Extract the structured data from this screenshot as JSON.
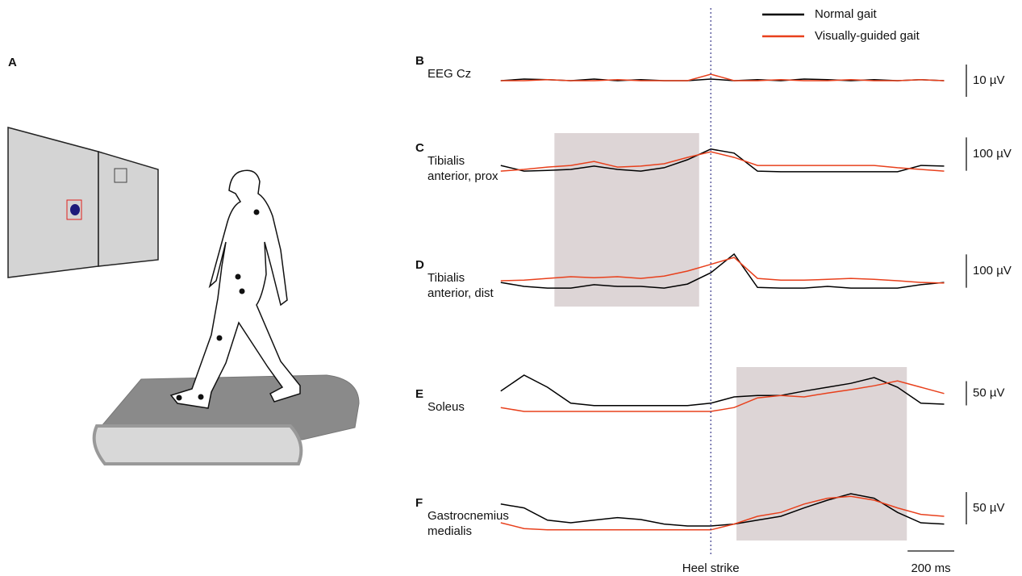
{
  "panel_a": {
    "label": "A"
  },
  "legend": [
    {
      "name": "Normal gait",
      "color": "#000000"
    },
    {
      "name": "Visually-guided gait",
      "color": "#e8401c"
    }
  ],
  "time_axis": {
    "heel_strike": {
      "value": 0,
      "label": "Heel strike"
    },
    "scale_bar": {
      "value": 200,
      "label": "200 ms"
    }
  },
  "chart_data": [
    {
      "type": "line",
      "panel": "B",
      "title_lines": [
        "EEG Cz"
      ],
      "x": [
        -900,
        -800,
        -700,
        -600,
        -500,
        -400,
        -300,
        -200,
        -100,
        0,
        100,
        200,
        300,
        400,
        500,
        600,
        700,
        800,
        900,
        1000
      ],
      "xlim": [
        -920,
        1050
      ],
      "ylim": [
        -10,
        10
      ],
      "scale_bar": {
        "value": 10,
        "label": "10 µV"
      },
      "series": [
        {
          "color": "#000000",
          "values": [
            0,
            0.5,
            0.3,
            0,
            0.5,
            0,
            0.3,
            0,
            0,
            0.5,
            0,
            0.3,
            0,
            0.5,
            0.3,
            0,
            0.3,
            0,
            0.3,
            0
          ]
        },
        {
          "color": "#e8401c",
          "values": [
            0,
            0,
            0.3,
            0,
            0,
            0.3,
            0,
            0,
            0,
            2,
            0,
            0,
            0.3,
            0,
            0,
            0.3,
            0,
            0,
            0.3,
            0
          ]
        }
      ]
    },
    {
      "type": "line",
      "panel": "C",
      "title_lines": [
        "Tibialis",
        "anterior, prox"
      ],
      "x": [
        -900,
        -800,
        -700,
        -600,
        -500,
        -400,
        -300,
        -200,
        -100,
        0,
        100,
        200,
        300,
        400,
        500,
        600,
        700,
        800,
        900,
        1000
      ],
      "xlim": [
        -920,
        1050
      ],
      "ylim": [
        0,
        150
      ],
      "highlight_x": [
        -670,
        -50
      ],
      "scale_bar": {
        "value": 100,
        "label": "100 µV"
      },
      "series": [
        {
          "color": "#000000",
          "values": [
            41,
            24,
            26,
            29,
            39,
            29,
            24,
            34,
            58,
            90,
            78,
            24,
            22,
            22,
            22,
            22,
            22,
            22,
            41,
            39
          ]
        },
        {
          "color": "#e8401c",
          "values": [
            24,
            29,
            36,
            41,
            53,
            36,
            39,
            46,
            65,
            82,
            65,
            41,
            41,
            41,
            41,
            41,
            41,
            34,
            29,
            24
          ]
        }
      ]
    },
    {
      "type": "line",
      "panel": "D",
      "title_lines": [
        "Tibialis",
        "anterior, dist"
      ],
      "x": [
        -900,
        -800,
        -700,
        -600,
        -500,
        -400,
        -300,
        -200,
        -100,
        0,
        100,
        200,
        300,
        400,
        500,
        600,
        700,
        800,
        900,
        1000
      ],
      "xlim": [
        -920,
        1050
      ],
      "ylim": [
        0,
        150
      ],
      "highlight_x": [
        -670,
        -50
      ],
      "scale_bar": {
        "value": 100,
        "label": "100 µV"
      },
      "series": [
        {
          "color": "#000000",
          "values": [
            41,
            29,
            24,
            24,
            34,
            29,
            29,
            24,
            36,
            70,
            126,
            26,
            24,
            24,
            29,
            24,
            24,
            24,
            34,
            41
          ]
        },
        {
          "color": "#e8401c",
          "values": [
            46,
            48,
            53,
            58,
            55,
            58,
            53,
            60,
            75,
            95,
            116,
            53,
            48,
            48,
            50,
            53,
            50,
            46,
            41,
            39
          ]
        }
      ]
    },
    {
      "type": "line",
      "panel": "E",
      "title_lines": [
        "Soleus"
      ],
      "x": [
        -900,
        -800,
        -700,
        -600,
        -500,
        -400,
        -300,
        -200,
        -100,
        0,
        100,
        200,
        300,
        400,
        500,
        600,
        700,
        800,
        900,
        1000
      ],
      "xlim": [
        -920,
        1050
      ],
      "ylim": [
        0,
        75
      ],
      "highlight_x": [
        110,
        840
      ],
      "scale_bar": {
        "value": 50,
        "label": "50 µV"
      },
      "series": [
        {
          "color": "#000000",
          "values": [
            42,
            75,
            50,
            17,
            12,
            12,
            12,
            12,
            12,
            17,
            30,
            33,
            33,
            42,
            50,
            58,
            70,
            50,
            17,
            15
          ]
        },
        {
          "color": "#e8401c",
          "values": [
            8,
            0,
            0,
            0,
            0,
            0,
            0,
            0,
            0,
            0,
            8,
            28,
            33,
            30,
            38,
            45,
            53,
            63,
            50,
            37
          ]
        }
      ]
    },
    {
      "type": "line",
      "panel": "F",
      "title_lines": [
        "Gastrocnemius",
        "medialis"
      ],
      "x": [
        -900,
        -800,
        -700,
        -600,
        -500,
        -400,
        -300,
        -200,
        -100,
        0,
        100,
        200,
        300,
        400,
        500,
        600,
        700,
        800,
        900,
        1000
      ],
      "xlim": [
        -920,
        1050
      ],
      "ylim": [
        0,
        75
      ],
      "highlight_x": [
        110,
        840
      ],
      "scale_bar": {
        "value": 50,
        "label": "50 µV"
      },
      "series": [
        {
          "color": "#000000",
          "values": [
            44,
            38,
            19,
            15,
            19,
            23,
            20,
            13,
            10,
            10,
            13,
            19,
            25,
            38,
            50,
            60,
            53,
            31,
            15,
            13
          ]
        },
        {
          "color": "#e8401c",
          "values": [
            15,
            6,
            4,
            4,
            4,
            4,
            4,
            4,
            4,
            4,
            13,
            25,
            31,
            44,
            53,
            56,
            50,
            38,
            28,
            25
          ]
        }
      ]
    }
  ]
}
